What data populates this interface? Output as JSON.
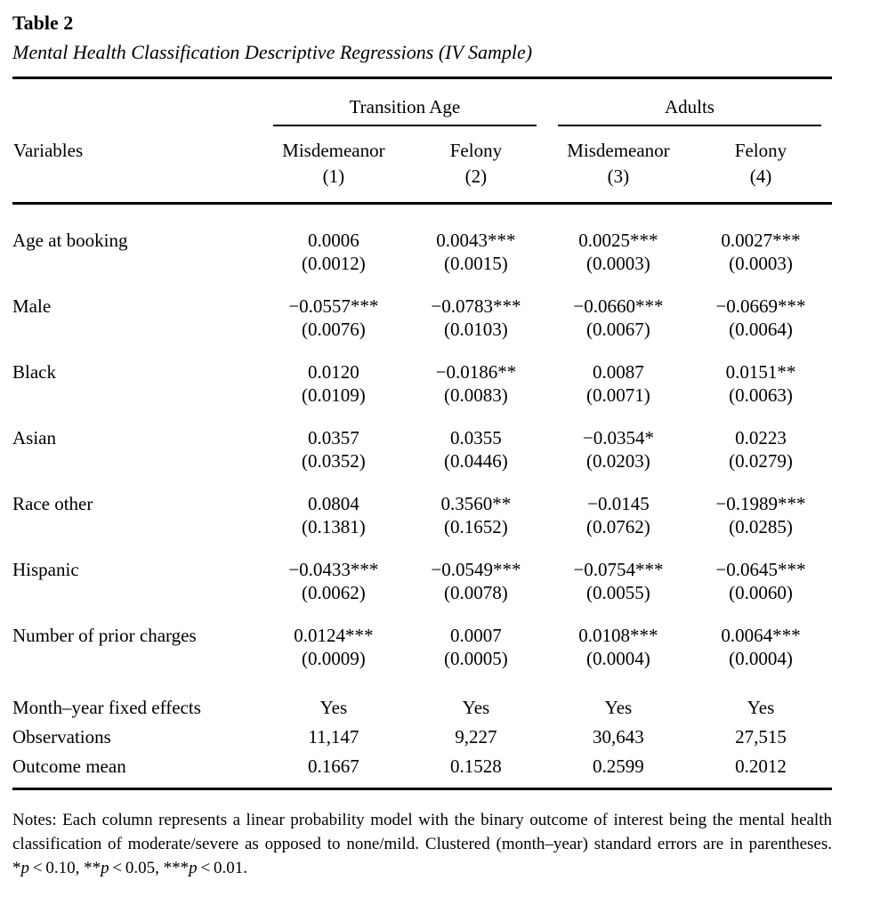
{
  "page": {
    "title": "Table 2",
    "subtitle": "Mental Health Classification Descriptive Regressions (IV Sample)"
  },
  "table": {
    "stub_header": "Variables",
    "col_groups": [
      {
        "label": "Transition Age"
      },
      {
        "label": "Adults"
      }
    ],
    "columns": [
      {
        "group": "Transition Age",
        "label": "Misdemeanor",
        "number": "(1)"
      },
      {
        "group": "Transition Age",
        "label": "Felony",
        "number": "(2)"
      },
      {
        "group": "Adults",
        "label": "Misdemeanor",
        "number": "(3)"
      },
      {
        "group": "Adults",
        "label": "Felony",
        "number": "(4)"
      }
    ],
    "rows": [
      {
        "variable": "Age at booking",
        "coefficients": [
          "0.0006",
          "0.0043***",
          "0.0025***",
          "0.0027***"
        ],
        "std_errors": [
          "(0.0012)",
          "(0.0015)",
          "(0.0003)",
          "(0.0003)"
        ]
      },
      {
        "variable": "Male",
        "coefficients": [
          "−0.0557***",
          "−0.0783***",
          "−0.0660***",
          "−0.0669***"
        ],
        "std_errors": [
          "(0.0076)",
          "(0.0103)",
          "(0.0067)",
          "(0.0064)"
        ]
      },
      {
        "variable": "Black",
        "coefficients": [
          "0.0120",
          "−0.0186**",
          "0.0087",
          "0.0151**"
        ],
        "std_errors": [
          "(0.0109)",
          "(0.0083)",
          "(0.0071)",
          "(0.0063)"
        ]
      },
      {
        "variable": "Asian",
        "coefficients": [
          "0.0357",
          "0.0355",
          "−0.0354*",
          "0.0223"
        ],
        "std_errors": [
          "(0.0352)",
          "(0.0446)",
          "(0.0203)",
          "(0.0279)"
        ]
      },
      {
        "variable": "Race other",
        "coefficients": [
          "0.0804",
          "0.3560**",
          "−0.0145",
          "−0.1989***"
        ],
        "std_errors": [
          "(0.1381)",
          "(0.1652)",
          "(0.0762)",
          "(0.0285)"
        ]
      },
      {
        "variable": "Hispanic",
        "coefficients": [
          "−0.0433***",
          "−0.0549***",
          "−0.0754***",
          "−0.0645***"
        ],
        "std_errors": [
          "(0.0062)",
          "(0.0078)",
          "(0.0055)",
          "(0.0060)"
        ]
      },
      {
        "variable": "Number of prior charges",
        "coefficients": [
          "0.0124***",
          "0.0007",
          "0.0108***",
          "0.0064***"
        ],
        "std_errors": [
          "(0.0009)",
          "(0.0005)",
          "(0.0004)",
          "(0.0004)"
        ]
      }
    ],
    "summary_rows": [
      {
        "label": "Month–year fixed effects",
        "values": [
          "Yes",
          "Yes",
          "Yes",
          "Yes"
        ]
      },
      {
        "label": "Observations",
        "values": [
          "11,147",
          "9,227",
          "30,643",
          "27,515"
        ]
      },
      {
        "label": "Outcome mean",
        "values": [
          "0.1667",
          "0.1528",
          "0.2599",
          "0.2012"
        ]
      }
    ]
  },
  "notes": {
    "body": "Notes: Each column represents a linear probability model with the binary outcome of interest being the mental health classification of moderate/severe as opposed to none/mild. Clustered (month–year) standard errors are in parentheses.",
    "significance": [
      {
        "stars": "*",
        "symbol": "p",
        "threshold": " < 0.10,"
      },
      {
        "stars": "**",
        "symbol": "p",
        "threshold": " < 0.05,"
      },
      {
        "stars": "***",
        "symbol": "p",
        "threshold": " < 0.01."
      }
    ]
  }
}
